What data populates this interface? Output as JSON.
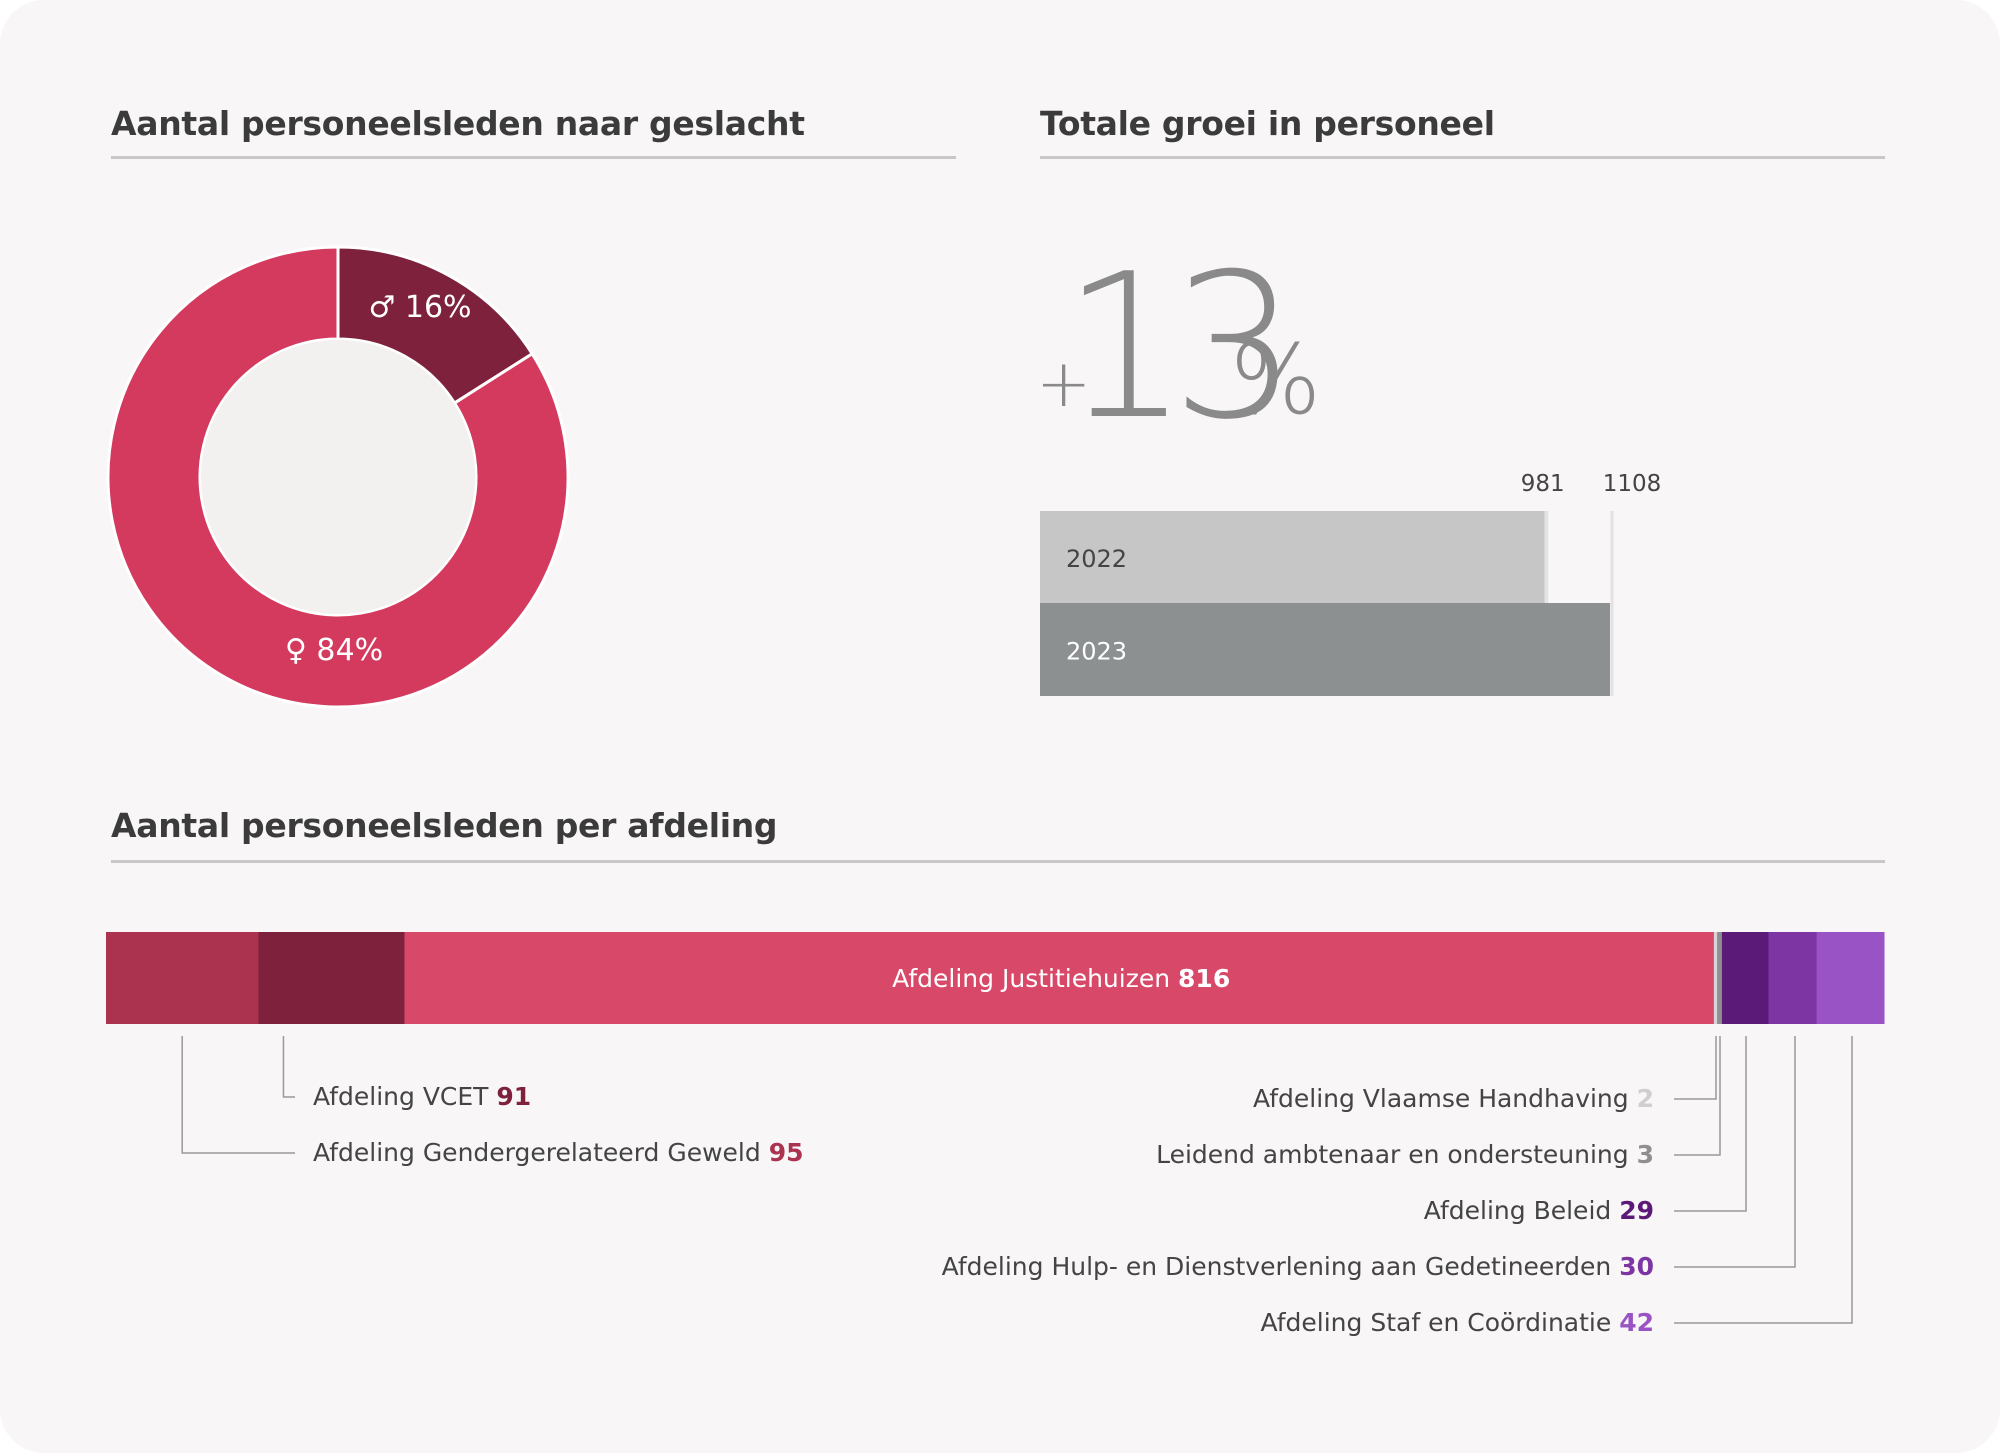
{
  "sections": {
    "gender_title": "Aantal personeelsleden naar geslacht",
    "growth_title": "Totale groei in personeel",
    "department_title": "Aantal personeelsleden per afdeling"
  },
  "growth": {
    "plus": "+",
    "number": "13",
    "percent": "%"
  },
  "colors": {
    "male": "#7d213c",
    "female": "#d43a5e",
    "donut_hole": "#f2f1f0",
    "bar_2022": "#c6c6c6",
    "bar_2023": "#8c9091",
    "label_text": "#444444",
    "leader_line": "#999999"
  },
  "chart_data": [
    {
      "type": "pie",
      "title": "Aantal personeelsleden naar geslacht",
      "slices": [
        {
          "key": "male",
          "symbol": "♂",
          "value": 16,
          "label": "16%",
          "color": "#7d213c"
        },
        {
          "key": "female",
          "symbol": "♀",
          "value": 84,
          "label": "84%",
          "color": "#d43a5e"
        }
      ],
      "donut": true
    },
    {
      "type": "bar",
      "orientation": "horizontal",
      "title": "Totale groei in personeel",
      "categories": [
        "2022",
        "2023"
      ],
      "values": [
        981,
        1108
      ],
      "value_labels": [
        "981",
        "1108"
      ],
      "colors": [
        "#c6c6c6",
        "#8c9091"
      ]
    },
    {
      "type": "bar",
      "orientation": "horizontal-stacked",
      "title": "Aantal personeelsleden per afdeling",
      "total": 1108,
      "segments": [
        {
          "name": "Afdeling Gendergerelateerd Geweld",
          "value": 95,
          "color": "#ac3350",
          "side": "left"
        },
        {
          "name": "Afdeling VCET",
          "value": 91,
          "color": "#7d213c",
          "side": "left"
        },
        {
          "name": "Afdeling Justitiehuizen",
          "value": 816,
          "color": "#d84868",
          "side": "inside"
        },
        {
          "name": "Afdeling Vlaamse Handhaving",
          "value": 2,
          "color": "#d6d6d6",
          "side": "right"
        },
        {
          "name": "Leidend ambtenaar en ondersteuning",
          "value": 3,
          "color": "#8f8f8f",
          "side": "right"
        },
        {
          "name": "Afdeling Beleid",
          "value": 29,
          "color": "#5b1a77",
          "side": "right"
        },
        {
          "name": "Afdeling Hulp- en Dienstverlening aan Gedetineerden",
          "value": 30,
          "color": "#7d35a3",
          "side": "right"
        },
        {
          "name": "Afdeling Staf en Coördinatie",
          "value": 42,
          "color": "#9a53c4",
          "side": "right"
        }
      ]
    }
  ]
}
